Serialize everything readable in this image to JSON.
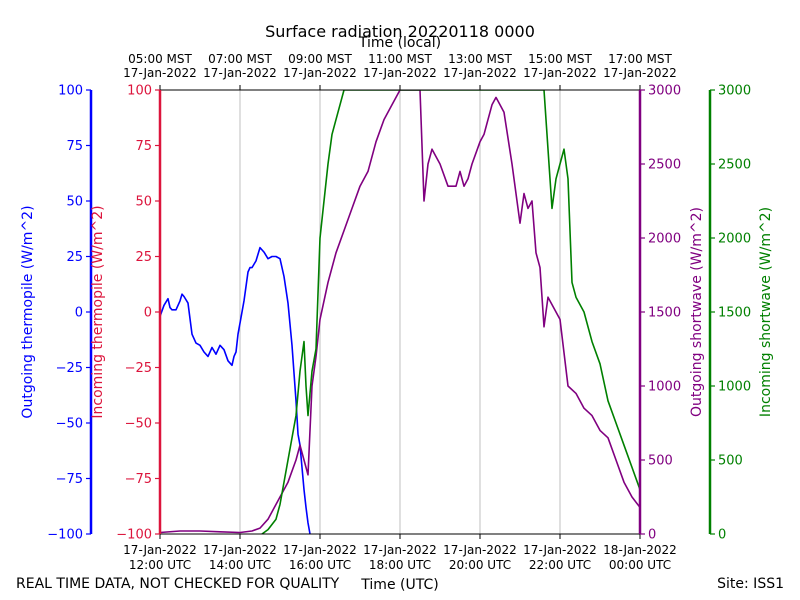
{
  "chart_data": {
    "type": "line",
    "title": "Surface radiation 20220118 0000",
    "top_axis_title": "Time (local)",
    "xlabel": "Time (UTC)",
    "footer_left": "REAL TIME DATA, NOT CHECKED FOR QUALITY",
    "footer_right": "Site: ISS1",
    "x_range_hours_utc": [
      12,
      24
    ],
    "x_ticks": [
      {
        "h": 12,
        "utc": [
          "17-Jan-2022",
          "12:00 UTC"
        ],
        "local": [
          "05:00 MST",
          "17-Jan-2022"
        ]
      },
      {
        "h": 14,
        "utc": [
          "17-Jan-2022",
          "14:00 UTC"
        ],
        "local": [
          "07:00 MST",
          "17-Jan-2022"
        ]
      },
      {
        "h": 16,
        "utc": [
          "17-Jan-2022",
          "16:00 UTC"
        ],
        "local": [
          "09:00 MST",
          "17-Jan-2022"
        ]
      },
      {
        "h": 18,
        "utc": [
          "17-Jan-2022",
          "18:00 UTC"
        ],
        "local": [
          "11:00 MST",
          "17-Jan-2022"
        ]
      },
      {
        "h": 20,
        "utc": [
          "17-Jan-2022",
          "20:00 UTC"
        ],
        "local": [
          "13:00 MST",
          "17-Jan-2022"
        ]
      },
      {
        "h": 22,
        "utc": [
          "17-Jan-2022",
          "22:00 UTC"
        ],
        "local": [
          "15:00 MST",
          "17-Jan-2022"
        ]
      },
      {
        "h": 24,
        "utc": [
          "18-Jan-2022",
          "00:00 UTC"
        ],
        "local": [
          "17:00 MST",
          "17-Jan-2022"
        ]
      }
    ],
    "grid_x": true,
    "axes": [
      {
        "key": "out_thermo",
        "label": "Outgoing thermopile (W/m^2)",
        "color": "#0000ff",
        "ylim": [
          -100,
          100
        ],
        "ticks": [
          -100,
          -75,
          -50,
          -25,
          0,
          25,
          50,
          75,
          100
        ],
        "side": "left-outer"
      },
      {
        "key": "in_thermo",
        "label": "Incoming thermopile (W/m^2)",
        "color": "#dc143c",
        "ylim": [
          -100,
          100
        ],
        "ticks": [
          -100,
          -75,
          -50,
          -25,
          0,
          25,
          50,
          75,
          100
        ],
        "side": "left-inner"
      },
      {
        "key": "out_sw",
        "label": "Outgoing shortwave (W/m^2)",
        "color": "#800080",
        "ylim": [
          0,
          3000
        ],
        "ticks": [
          0,
          500,
          1000,
          1500,
          2000,
          2500,
          3000
        ],
        "side": "right-inner"
      },
      {
        "key": "in_sw",
        "label": "Incoming shortwave (W/m^2)",
        "color": "#008000",
        "ylim": [
          0,
          3000
        ],
        "ticks": [
          0,
          500,
          1000,
          1500,
          2000,
          2500,
          3000
        ],
        "side": "right-outer"
      }
    ],
    "series": [
      {
        "axis": "out_thermo",
        "color": "#0000ff",
        "x": [
          12.0,
          12.1,
          12.2,
          12.25,
          12.3,
          12.4,
          12.5,
          12.55,
          12.6,
          12.7,
          12.8,
          12.9,
          13.0,
          13.1,
          13.2,
          13.3,
          13.4,
          13.5,
          13.6,
          13.7,
          13.8,
          13.85,
          13.9,
          13.95,
          14.0,
          14.1,
          14.2,
          14.25,
          14.3,
          14.4,
          14.5,
          14.6,
          14.7,
          14.8,
          14.9,
          15.0,
          15.1,
          15.2,
          15.3,
          15.4,
          15.45,
          15.5,
          15.55,
          15.6,
          15.65,
          15.7,
          15.75
        ],
        "y": [
          -2,
          3,
          6,
          2,
          1,
          1,
          5,
          8,
          7,
          4,
          -10,
          -14,
          -15,
          -18,
          -20,
          -16,
          -19,
          -15,
          -17,
          -22,
          -24,
          -20,
          -18,
          -10,
          -5,
          5,
          18,
          20,
          20,
          23,
          29,
          27,
          24,
          25,
          25,
          24,
          16,
          4,
          -15,
          -40,
          -55,
          -60,
          -70,
          -80,
          -88,
          -95,
          -100
        ]
      },
      {
        "axis": "in_thermo",
        "color": "#dc143c",
        "x": [],
        "y": []
      },
      {
        "axis": "out_sw",
        "color": "#800080",
        "x": [
          12.0,
          12.5,
          13.0,
          13.5,
          14.0,
          14.3,
          14.5,
          14.7,
          15.0,
          15.2,
          15.4,
          15.5,
          15.6,
          15.7,
          15.8,
          15.9,
          16.0,
          16.2,
          16.4,
          16.6,
          16.8,
          17.0,
          17.2,
          17.4,
          17.6,
          17.8,
          17.9,
          18.0,
          18.3,
          18.5,
          18.6,
          18.7,
          18.8,
          18.9,
          19.0,
          19.2,
          19.4,
          19.5,
          19.6,
          19.7,
          19.8,
          20.0,
          20.1,
          20.2,
          20.3,
          20.4,
          20.5,
          20.6,
          20.8,
          21.0,
          21.1,
          21.2,
          21.3,
          21.4,
          21.5,
          21.6,
          21.7,
          21.8,
          21.9,
          22.0,
          22.2,
          22.4,
          22.6,
          22.8,
          23.0,
          23.2,
          23.4,
          23.6,
          23.8,
          24.0
        ],
        "y": [
          10,
          20,
          20,
          15,
          10,
          20,
          40,
          100,
          250,
          350,
          500,
          600,
          500,
          400,
          1000,
          1200,
          1450,
          1700,
          1900,
          2050,
          2200,
          2350,
          2450,
          2650,
          2800,
          2900,
          2950,
          3000,
          3000,
          3000,
          2250,
          2500,
          2600,
          2550,
          2500,
          2350,
          2350,
          2450,
          2350,
          2400,
          2500,
          2650,
          2700,
          2800,
          2900,
          2950,
          2900,
          2850,
          2500,
          2100,
          2300,
          2200,
          2250,
          1900,
          1800,
          1400,
          1600,
          1550,
          1500,
          1450,
          1000,
          950,
          850,
          800,
          700,
          650,
          500,
          350,
          250,
          180
        ]
      },
      {
        "axis": "in_sw",
        "color": "#008000",
        "x": [
          14.55,
          14.7,
          14.9,
          15.0,
          15.2,
          15.4,
          15.5,
          15.6,
          15.65,
          15.7,
          15.8,
          15.9,
          16.0,
          16.1,
          16.2,
          16.3,
          16.4,
          16.5,
          16.6,
          21.6,
          21.8,
          21.9,
          22.0,
          22.1,
          22.2,
          22.3,
          22.4,
          22.6,
          22.8,
          23.0,
          23.2,
          23.4,
          23.6,
          23.8,
          24.0
        ],
        "y": [
          0,
          30,
          100,
          200,
          500,
          800,
          1100,
          1300,
          1000,
          800,
          1100,
          1250,
          2000,
          2250,
          2500,
          2700,
          2800,
          2900,
          3000,
          3000,
          2200,
          2400,
          2500,
          2600,
          2400,
          1700,
          1600,
          1500,
          1300,
          1150,
          900,
          750,
          600,
          450,
          300
        ]
      }
    ]
  }
}
